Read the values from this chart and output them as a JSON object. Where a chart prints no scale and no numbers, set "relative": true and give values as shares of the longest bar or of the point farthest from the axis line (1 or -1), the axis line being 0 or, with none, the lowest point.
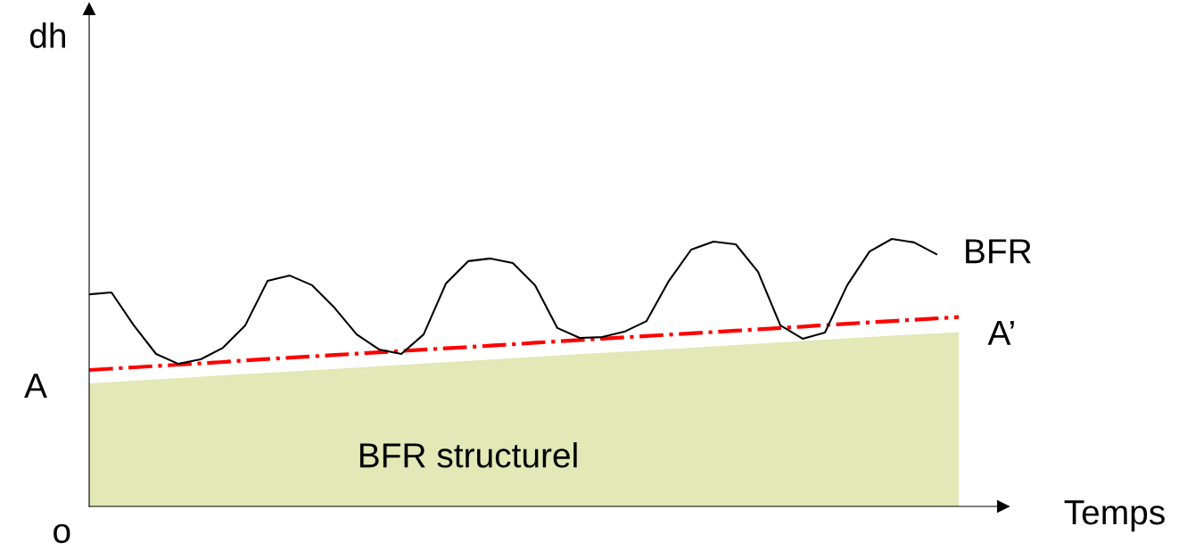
{
  "chart_data": {
    "type": "line",
    "relative": true,
    "xlabel": "Temps",
    "categories": [
      null,
      null,
      null,
      null,
      null,
      null,
      null,
      null,
      null,
      null,
      null,
      null,
      null,
      null,
      null,
      null,
      null,
      null,
      null,
      null,
      null,
      null,
      null,
      null,
      null,
      null,
      null,
      null,
      null,
      null,
      null,
      null,
      null,
      null,
      null,
      null,
      null,
      null,
      null,
      null
    ],
    "series": [
      {
        "name": "BFR structurel",
        "type": "area",
        "color": "#e2e8b6",
        "values": [
          0.46,
          0.465,
          0.47,
          0.475,
          0.48,
          0.485,
          0.49,
          0.495,
          0.499,
          0.504,
          0.509,
          0.514,
          0.519,
          0.524,
          0.529,
          0.534,
          0.539,
          0.544,
          0.549,
          0.554,
          0.559,
          0.564,
          0.569,
          0.574,
          0.578,
          0.583,
          0.588,
          0.593,
          0.598,
          0.603,
          0.608,
          0.613,
          0.618,
          0.623,
          0.628,
          0.633,
          0.638,
          0.643,
          0.647,
          0.652
        ]
      },
      {
        "type": "line",
        "color": "#ff0000",
        "line_style": "dashdot",
        "values": [
          0.51,
          0.515,
          0.52,
          0.525,
          0.53,
          0.535,
          0.54,
          0.546,
          0.551,
          0.556,
          0.561,
          0.566,
          0.571,
          0.576,
          0.581,
          0.586,
          0.591,
          0.596,
          0.601,
          0.606,
          0.612,
          0.617,
          0.622,
          0.627,
          0.632,
          0.637,
          0.642,
          0.647,
          0.652,
          0.657,
          0.662,
          0.667,
          0.672,
          0.678,
          0.683,
          0.688,
          0.693,
          0.698,
          0.703,
          0.708
        ]
      },
      {
        "name": "BFR",
        "color": "#000000",
        "line_style": "solid",
        "values": [
          0.793,
          0.8,
          0.677,
          0.57,
          0.533,
          0.55,
          0.593,
          0.677,
          0.843,
          0.863,
          0.827,
          0.743,
          0.643,
          0.587,
          0.57,
          0.643,
          0.833,
          0.917,
          0.927,
          0.91,
          0.827,
          0.667,
          0.63,
          0.633,
          0.653,
          0.693,
          0.843,
          0.96,
          0.99,
          0.98,
          0.877,
          0.677,
          0.627,
          0.65,
          0.827,
          0.953,
          1.0,
          0.987,
          0.943,
          null
        ]
      }
    ],
    "annotations": [
      "o",
      "A",
      "A’",
      "dh"
    ]
  }
}
